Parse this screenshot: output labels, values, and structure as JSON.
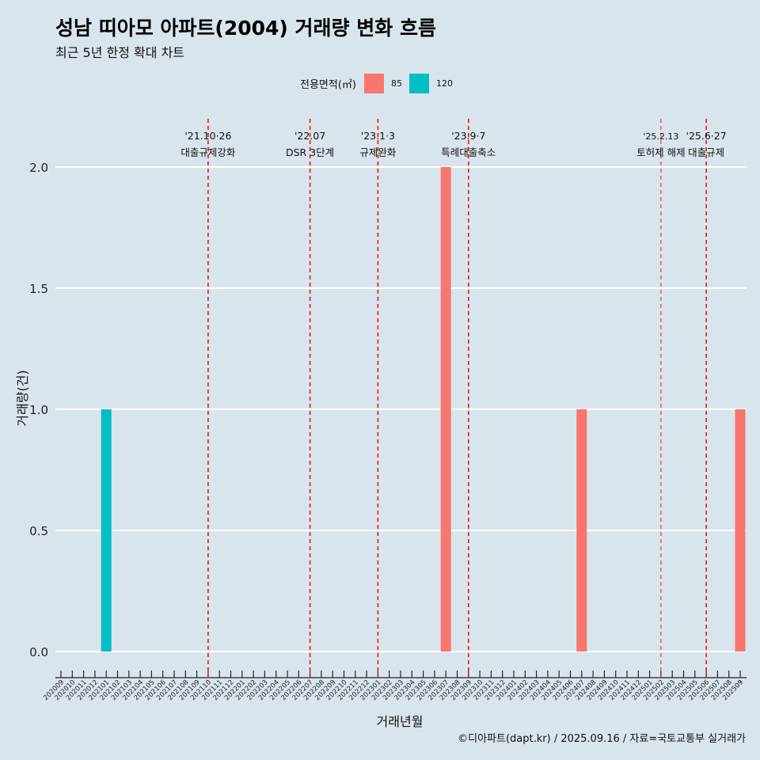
{
  "chart_data": {
    "type": "bar",
    "title": "성남 띠아모 아파트(2004) 거래량 변화 흐름",
    "subtitle": "최근 5년 한정 확대 차트",
    "xlabel": "거래년월",
    "ylabel": "거래량(건)",
    "caption": "©디아파트(dapt.kr) / 2025.09.16 / 자료=국토교통부 실거래가",
    "legend_title": "전용면적(㎡)",
    "ylim": [
      0,
      2.2
    ],
    "yticks": [
      "0.0",
      "0.5",
      "1.0",
      "1.5",
      "2.0"
    ],
    "categories": [
      "202009",
      "202010",
      "202011",
      "202012",
      "202101",
      "202102",
      "202103",
      "202104",
      "202105",
      "202106",
      "202107",
      "202108",
      "202109",
      "202110",
      "202111",
      "202112",
      "202201",
      "202202",
      "202203",
      "202204",
      "202205",
      "202206",
      "202207",
      "202208",
      "202209",
      "202210",
      "202211",
      "202212",
      "202301",
      "202302",
      "202303",
      "202304",
      "202305",
      "202306",
      "202307",
      "202308",
      "202309",
      "202310",
      "202311",
      "202312",
      "202401",
      "202402",
      "202403",
      "202404",
      "202405",
      "202406",
      "202407",
      "202408",
      "202409",
      "202410",
      "202411",
      "202412",
      "202501",
      "202502",
      "202503",
      "202504",
      "202505",
      "202506",
      "202507",
      "202508",
      "202509"
    ],
    "series": [
      {
        "name": "85",
        "color": "#f8766d",
        "values": [
          0,
          0,
          0,
          0,
          0,
          0,
          0,
          0,
          0,
          0,
          0,
          0,
          0,
          0,
          0,
          0,
          0,
          0,
          0,
          0,
          0,
          0,
          0,
          0,
          0,
          0,
          0,
          0,
          0,
          0,
          0,
          0,
          0,
          0,
          2,
          0,
          0,
          0,
          0,
          0,
          0,
          0,
          0,
          0,
          0,
          0,
          1,
          0,
          0,
          0,
          0,
          0,
          0,
          0,
          0,
          0,
          0,
          0,
          0,
          0,
          1
        ]
      },
      {
        "name": "120",
        "color": "#00bfc4",
        "values": [
          0,
          0,
          0,
          0,
          1,
          0,
          0,
          0,
          0,
          0,
          0,
          0,
          0,
          0,
          0,
          0,
          0,
          0,
          0,
          0,
          0,
          0,
          0,
          0,
          0,
          0,
          0,
          0,
          0,
          0,
          0,
          0,
          0,
          0,
          0,
          0,
          0,
          0,
          0,
          0,
          0,
          0,
          0,
          0,
          0,
          0,
          0,
          0,
          0,
          0,
          0,
          0,
          0,
          0,
          0,
          0,
          0,
          0,
          0,
          0,
          0
        ]
      }
    ],
    "events": [
      {
        "date": "'21.10·26",
        "label": "대출규제강화",
        "index": 13
      },
      {
        "date": "'22.07",
        "label": "DSR 3단계",
        "index": 22
      },
      {
        "date": "'23.1·3",
        "label": "규제완화",
        "index": 28
      },
      {
        "date": "'23.9·7",
        "label": "특례대출축소",
        "index": 36
      },
      {
        "date": "'25.2.13",
        "label": "토허제 해제",
        "index": 53
      },
      {
        "date": "'25.6·27",
        "label": "대출규제",
        "index": 57
      }
    ]
  }
}
